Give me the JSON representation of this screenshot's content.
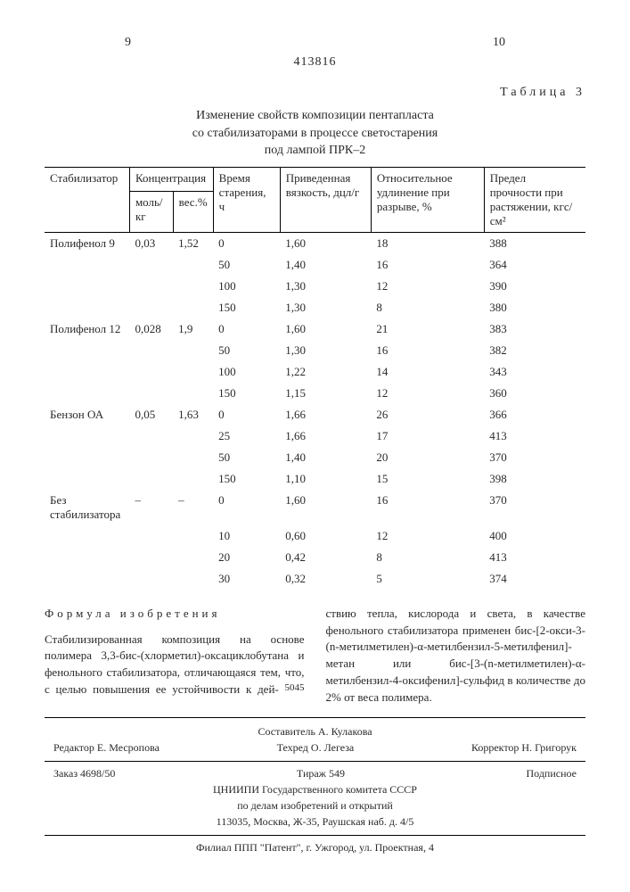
{
  "page_left": "9",
  "page_right": "10",
  "doc_number": "413816",
  "table_label": "Таблица 3",
  "table_title_l1": "Изменение свойств композиции пентапласта",
  "table_title_l2": "со стабилизаторами в процессе светостарения",
  "table_title_l3": "под лампой ПРК–2",
  "headers": {
    "stab": "Стабилизатор",
    "conc": "Концентрация",
    "mol": "моль/кг",
    "wt": "вес.%",
    "time": "Время старения, ч",
    "visc": "Приведенная вязкость, дцл/г",
    "elong": "Относительное удлинение при разрыве, %",
    "strength": "Предел прочности при растяжении, кгс/см²"
  },
  "groups": [
    {
      "name": "Полифенол 9",
      "mol": "0,03",
      "wt": "1,52",
      "rows": [
        {
          "t": "0",
          "v": "1,60",
          "e": "18",
          "s": "388"
        },
        {
          "t": "50",
          "v": "1,40",
          "e": "16",
          "s": "364"
        },
        {
          "t": "100",
          "v": "1,30",
          "e": "12",
          "s": "390"
        },
        {
          "t": "150",
          "v": "1,30",
          "e": "8",
          "s": "380"
        }
      ]
    },
    {
      "name": "Полифенол 12",
      "mol": "0,028",
      "wt": "1,9",
      "rows": [
        {
          "t": "0",
          "v": "1,60",
          "e": "21",
          "s": "383"
        },
        {
          "t": "50",
          "v": "1,30",
          "e": "16",
          "s": "382"
        },
        {
          "t": "100",
          "v": "1,22",
          "e": "14",
          "s": "343"
        },
        {
          "t": "150",
          "v": "1,15",
          "e": "12",
          "s": "360"
        }
      ]
    },
    {
      "name": "Бензон ОА",
      "mol": "0,05",
      "wt": "1,63",
      "rows": [
        {
          "t": "0",
          "v": "1,66",
          "e": "26",
          "s": "366"
        },
        {
          "t": "25",
          "v": "1,66",
          "e": "17",
          "s": "413"
        },
        {
          "t": "50",
          "v": "1,40",
          "e": "20",
          "s": "370"
        },
        {
          "t": "150",
          "v": "1,10",
          "e": "15",
          "s": "398"
        }
      ]
    },
    {
      "name": "Без стабилизатора",
      "mol": "–",
      "wt": "–",
      "rows": [
        {
          "t": "0",
          "v": "1,60",
          "e": "16",
          "s": "370"
        },
        {
          "t": "10",
          "v": "0,60",
          "e": "12",
          "s": "400"
        },
        {
          "t": "20",
          "v": "0,42",
          "e": "8",
          "s": "413"
        },
        {
          "t": "30",
          "v": "0,32",
          "e": "5",
          "s": "374"
        }
      ]
    }
  ],
  "formula_title": "Формула изобретения",
  "body1": "Стабилизированная композиция на основе полимера 3,3-бис-(хлорметил)-оксациклобутана и фенольного стабилизатора, отличающаяся тем, что, с целью повышения ее устойчивости к дей-",
  "body2": "ствию тепла, кислорода и света, в качестве фенольного стабилизатора применен бис-[2-окси-3-(n-метилметилен)-α-метилбензил-5-метилфенил]-метан или бис-[3-(n-метилметилен)-α-метилбензил-4-оксифенил]-сульфид в количестве до 2% от веса полимера.",
  "ln45": "45",
  "ln50": "50",
  "footer": {
    "compiler": "Составитель А. Кулакова",
    "editor": "Редактор Е. Месропова",
    "tech": "Техред О. Легеза",
    "corrector": "Корректор Н. Григорук",
    "order": "Заказ 4698/50",
    "tirazh": "Тираж 549",
    "sub": "Подписное",
    "org1": "ЦНИИПИ Государственного комитета СССР",
    "org2": "по делам изобретений и открытий",
    "addr": "113035, Москва, Ж-35, Раушская наб. д. 4/5",
    "branch": "Филиал ППП \"Патент\", г. Ужгород, ул. Проектная, 4"
  }
}
